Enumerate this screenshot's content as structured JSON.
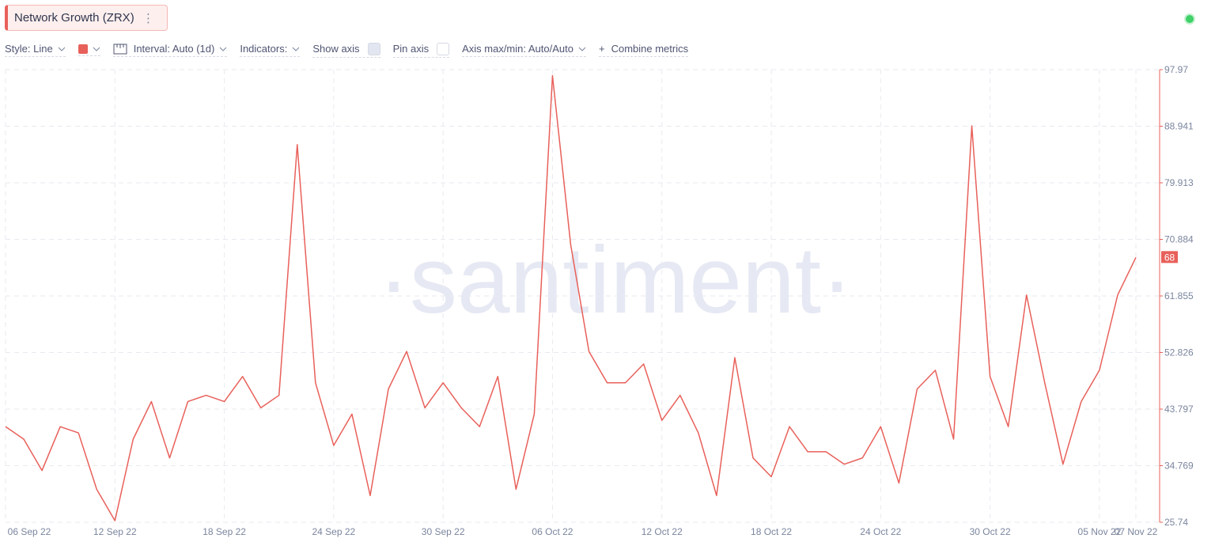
{
  "chart_data": {
    "type": "line",
    "title": "Network Growth (ZRX)",
    "categories": [
      "06 Sep 22",
      null,
      null,
      null,
      null,
      null,
      "12 Sep 22",
      null,
      null,
      null,
      null,
      null,
      "18 Sep 22",
      null,
      null,
      null,
      null,
      null,
      "24 Sep 22",
      null,
      null,
      null,
      null,
      null,
      "30 Sep 22",
      null,
      null,
      null,
      null,
      null,
      "06 Oct 22",
      null,
      null,
      null,
      null,
      null,
      "12 Oct 22",
      null,
      null,
      null,
      null,
      null,
      "18 Oct 22",
      null,
      null,
      null,
      null,
      null,
      "24 Oct 22",
      null,
      null,
      null,
      null,
      null,
      "30 Oct 22",
      null,
      null,
      null,
      null,
      null,
      "05 Nov 22",
      null,
      "07 Nov 22"
    ],
    "series": [
      {
        "name": "Network Growth (ZRX)",
        "color": "#e8605a",
        "values": [
          41,
          39,
          34,
          41,
          40,
          31,
          26,
          39,
          45,
          36,
          45,
          46,
          45,
          49,
          44,
          46,
          86,
          48,
          38,
          43,
          30,
          47,
          53,
          44,
          48,
          44,
          41,
          49,
          31,
          43,
          97,
          70,
          53,
          48,
          48,
          51,
          42,
          46,
          40,
          30,
          52,
          36,
          33,
          41,
          37,
          37,
          35,
          36,
          41,
          32,
          47,
          50,
          39,
          89,
          49,
          41,
          62,
          48,
          35,
          45,
          50,
          62,
          68
        ]
      }
    ],
    "ylim": [
      25.74,
      97.97
    ],
    "yticks": [
      25.74,
      34.769,
      43.797,
      52.826,
      61.855,
      70.884,
      79.913,
      88.941,
      97.97
    ],
    "grid": true
  },
  "toolbar": {
    "style": "Style: Line",
    "interval": "Interval: Auto (1d)",
    "indicators": "Indicators:",
    "show_axis": "Show axis",
    "pin_axis": "Pin axis",
    "axis_maxmin": "Axis max/min: Auto/Auto",
    "combine": "Combine metrics"
  },
  "watermark": "·santiment·"
}
